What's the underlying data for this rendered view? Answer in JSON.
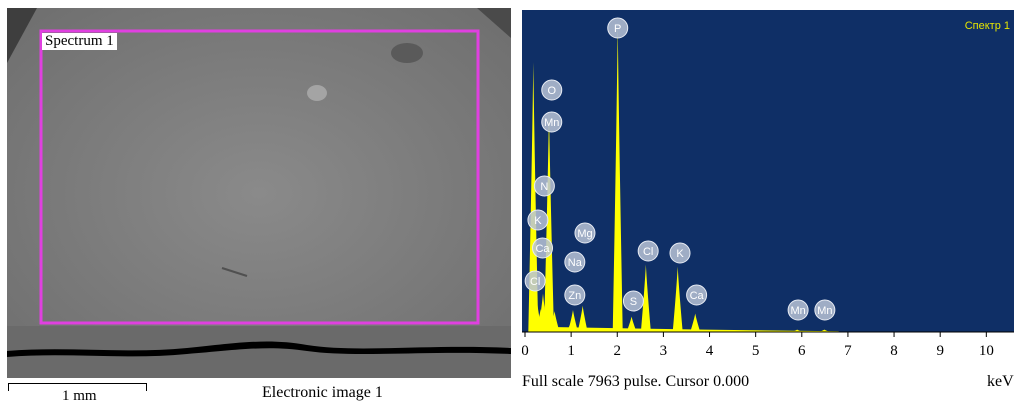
{
  "sem_image": {
    "spectrum_label": "Spectrum 1",
    "scale_label": "1 mm",
    "caption": "Electronic image 1",
    "colors": {
      "background": "#7f7f7f",
      "selection_box": "#e040e0",
      "crack": "#000000"
    }
  },
  "spectrum_panel": {
    "title": "Спектр 1",
    "footer": "Full scale 7963 pulse. Cursor 0.000",
    "unit": "keV",
    "colors": {
      "background": "#0f2f66",
      "spectrum": "#ffff00",
      "label_bubble": "#b8c3d6"
    }
  },
  "chart_data": {
    "type": "area",
    "title": "Спектр 1",
    "xlabel": "keV",
    "xlim": [
      0,
      10.6
    ],
    "ylim": [
      0,
      7963
    ],
    "x_ticks": [
      0,
      1,
      2,
      3,
      4,
      5,
      6,
      7,
      8,
      9,
      10
    ],
    "peaks": [
      {
        "element": "O",
        "x": 0.52,
        "y": 5750
      },
      {
        "element": "Mn",
        "x": 0.64,
        "y": 540
      },
      {
        "element": "N",
        "x": 0.39,
        "y": 1000
      },
      {
        "element": "K",
        "x": 0.26,
        "y": 800
      },
      {
        "element": "Ca",
        "x": 0.34,
        "y": 600
      },
      {
        "element": "Cl",
        "x": 0.18,
        "y": 7000
      },
      {
        "element": "Na",
        "x": 1.04,
        "y": 570
      },
      {
        "element": "Mg",
        "x": 1.25,
        "y": 680
      },
      {
        "element": "Zn",
        "x": 1.01,
        "y": 300
      },
      {
        "element": "P",
        "x": 2.01,
        "y": 7963
      },
      {
        "element": "S",
        "x": 2.31,
        "y": 400
      },
      {
        "element": "Cl",
        "x": 2.62,
        "y": 1750
      },
      {
        "element": "K",
        "x": 3.31,
        "y": 1700
      },
      {
        "element": "Ca",
        "x": 3.69,
        "y": 480
      },
      {
        "element": "Mn",
        "x": 5.9,
        "y": 60
      },
      {
        "element": "Mn",
        "x": 6.49,
        "y": 60
      }
    ],
    "labels": [
      {
        "text": "P",
        "x": 2.01
      },
      {
        "text": "O",
        "x": 0.58
      },
      {
        "text": "Mn",
        "x": 0.58
      },
      {
        "text": "N",
        "x": 0.42
      },
      {
        "text": "K",
        "x": 0.28
      },
      {
        "text": "Ca",
        "x": 0.38
      },
      {
        "text": "Cl",
        "x": 0.22
      },
      {
        "text": "Mg",
        "x": 1.3
      },
      {
        "text": "Na",
        "x": 1.08
      },
      {
        "text": "Zn",
        "x": 1.08
      },
      {
        "text": "S",
        "x": 2.35
      },
      {
        "text": "Cl",
        "x": 2.67
      },
      {
        "text": "K",
        "x": 3.36
      },
      {
        "text": "Ca",
        "x": 3.72
      },
      {
        "text": "Mn",
        "x": 5.92
      },
      {
        "text": "Mn",
        "x": 6.5
      }
    ]
  }
}
